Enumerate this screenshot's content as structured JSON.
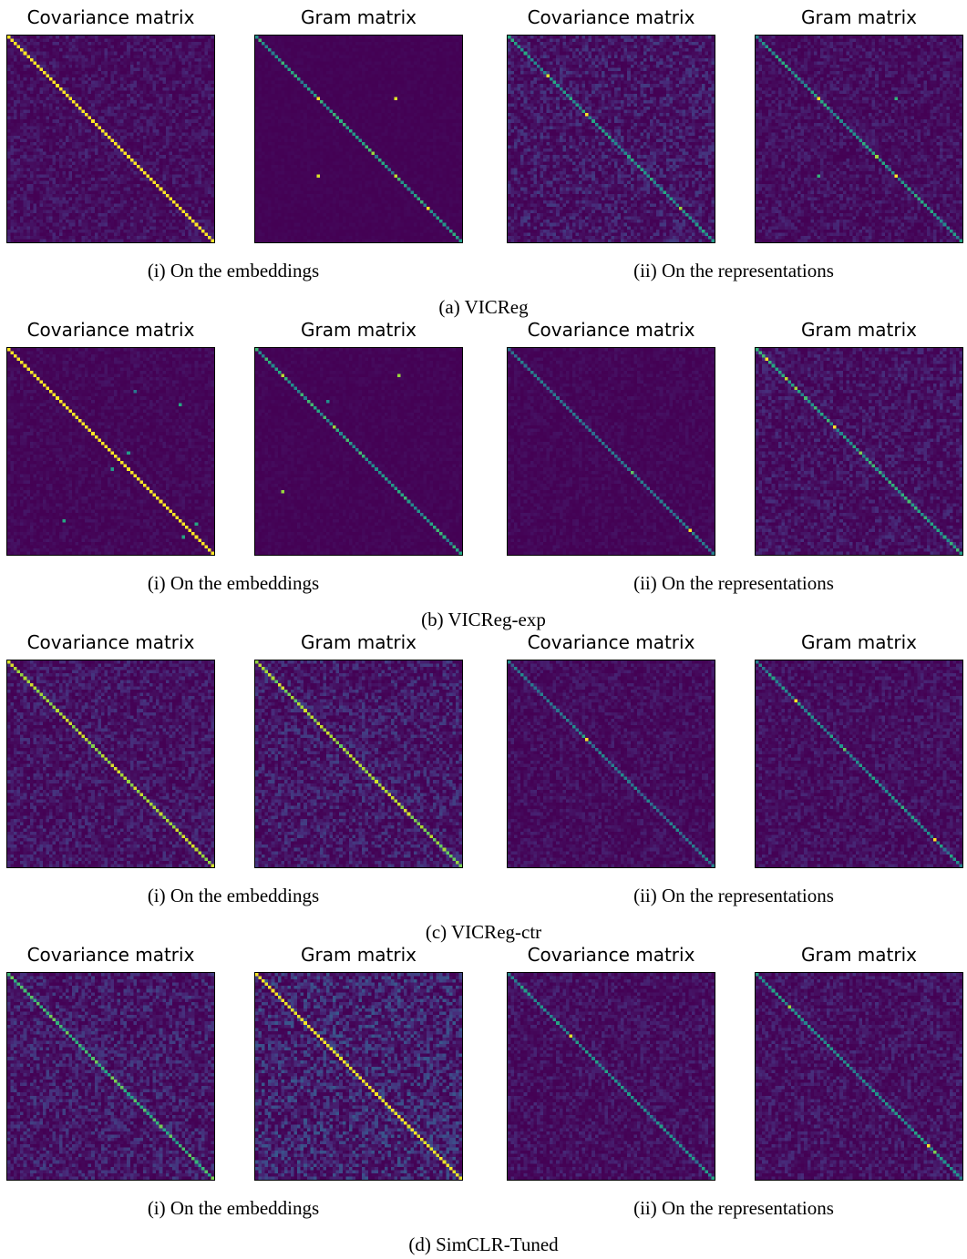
{
  "colors": {
    "low": "#440154",
    "mid": "#21918c",
    "high": "#fde725"
  },
  "subcaptions": [
    "(i) On the embeddings",
    "(ii) On the representations"
  ],
  "chart_data": [
    {
      "type": "heatmap",
      "group": "(a) VICReg",
      "title": "Covariance matrix",
      "n": 64,
      "diag": [
        1.0,
        1.0
      ],
      "noise": 0.12,
      "seed": 11,
      "spots": []
    },
    {
      "type": "heatmap",
      "group": "(a) VICReg",
      "title": "Gram matrix",
      "n": 64,
      "diag": [
        0.4,
        0.7
      ],
      "noise": 0.02,
      "seed": 12,
      "spots": [
        [
          19,
          19,
          1
        ],
        [
          19,
          43,
          0.95
        ],
        [
          43,
          19,
          0.95
        ],
        [
          36,
          36,
          0.85
        ],
        [
          43,
          43,
          0.9
        ],
        [
          53,
          53,
          1
        ],
        [
          60,
          60,
          0.6
        ]
      ]
    },
    {
      "type": "heatmap",
      "group": "(a) VICReg",
      "title": "Covariance matrix",
      "n": 64,
      "diag": [
        0.4,
        0.65
      ],
      "noise": 0.18,
      "seed": 13,
      "spots": [
        [
          12,
          12,
          0.95
        ],
        [
          24,
          24,
          1
        ],
        [
          53,
          53,
          0.85
        ]
      ]
    },
    {
      "type": "heatmap",
      "group": "(a) VICReg",
      "title": "Gram matrix",
      "n": 64,
      "diag": [
        0.4,
        0.65
      ],
      "noise": 0.12,
      "seed": 14,
      "spots": [
        [
          19,
          19,
          1
        ],
        [
          19,
          43,
          0.65
        ],
        [
          43,
          19,
          0.65
        ],
        [
          37,
          37,
          0.85
        ],
        [
          43,
          43,
          1
        ]
      ]
    },
    {
      "type": "heatmap",
      "group": "(b) VICReg-exp",
      "title": "Covariance matrix",
      "n": 64,
      "diag": [
        1.0,
        1.0
      ],
      "noise": 0.06,
      "seed": 21,
      "spots": [
        [
          17,
          53,
          0.6
        ],
        [
          53,
          17,
          0.6
        ],
        [
          32,
          37,
          0.55
        ],
        [
          37,
          32,
          0.55
        ],
        [
          13,
          39,
          0.4
        ],
        [
          58,
          54,
          0.6
        ],
        [
          54,
          58,
          0.6
        ]
      ]
    },
    {
      "type": "heatmap",
      "group": "(b) VICReg-exp",
      "title": "Gram matrix",
      "n": 64,
      "diag": [
        0.4,
        0.7
      ],
      "noise": 0.03,
      "seed": 22,
      "spots": [
        [
          8,
          8,
          0.9
        ],
        [
          8,
          44,
          0.85
        ],
        [
          44,
          8,
          0.85
        ],
        [
          24,
          24,
          0.85
        ],
        [
          32,
          32,
          0.7
        ],
        [
          45,
          45,
          0.6
        ],
        [
          16,
          22,
          0.5
        ]
      ]
    },
    {
      "type": "heatmap",
      "group": "(b) VICReg-exp",
      "title": "Covariance matrix",
      "n": 64,
      "diag": [
        0.35,
        0.45
      ],
      "noise": 0.05,
      "seed": 23,
      "spots": [
        [
          38,
          38,
          0.75
        ],
        [
          56,
          56,
          1
        ]
      ]
    },
    {
      "type": "heatmap",
      "group": "(b) VICReg-exp",
      "title": "Gram matrix",
      "n": 64,
      "diag": [
        0.45,
        0.7
      ],
      "noise": 0.14,
      "seed": 24,
      "spots": [
        [
          3,
          3,
          1
        ],
        [
          9,
          9,
          0.9
        ],
        [
          12,
          12,
          0.85
        ],
        [
          24,
          24,
          1
        ],
        [
          32,
          32,
          0.8
        ]
      ]
    },
    {
      "type": "heatmap",
      "group": "(c) VICReg-ctr",
      "title": "Covariance matrix",
      "n": 64,
      "diag": [
        0.8,
        0.95
      ],
      "noise": 0.16,
      "seed": 31,
      "spots": []
    },
    {
      "type": "heatmap",
      "group": "(c) VICReg-ctr",
      "title": "Gram matrix",
      "n": 64,
      "diag": [
        0.75,
        0.95
      ],
      "noise": 0.2,
      "seed": 32,
      "spots": []
    },
    {
      "type": "heatmap",
      "group": "(c) VICReg-ctr",
      "title": "Covariance matrix",
      "n": 64,
      "diag": [
        0.3,
        0.5
      ],
      "noise": 0.1,
      "seed": 33,
      "spots": [
        [
          24,
          24,
          1
        ],
        [
          23,
          23,
          0.6
        ]
      ]
    },
    {
      "type": "heatmap",
      "group": "(c) VICReg-ctr",
      "title": "Gram matrix",
      "n": 64,
      "diag": [
        0.35,
        0.6
      ],
      "noise": 0.12,
      "seed": 34,
      "spots": [
        [
          12,
          12,
          1
        ],
        [
          27,
          27,
          0.75
        ],
        [
          45,
          45,
          0.65
        ],
        [
          55,
          55,
          1
        ]
      ]
    },
    {
      "type": "heatmap",
      "group": "(d) SimCLR-Tuned",
      "title": "Covariance matrix",
      "n": 64,
      "diag": [
        0.55,
        0.8
      ],
      "noise": 0.2,
      "seed": 41,
      "spots": []
    },
    {
      "type": "heatmap",
      "group": "(d) SimCLR-Tuned",
      "title": "Gram matrix",
      "n": 64,
      "diag": [
        0.95,
        1.0
      ],
      "noise": 0.28,
      "seed": 42,
      "spots": []
    },
    {
      "type": "heatmap",
      "group": "(d) SimCLR-Tuned",
      "title": "Covariance matrix",
      "n": 64,
      "diag": [
        0.35,
        0.6
      ],
      "noise": 0.12,
      "seed": 43,
      "spots": [
        [
          19,
          19,
          0.95
        ]
      ]
    },
    {
      "type": "heatmap",
      "group": "(d) SimCLR-Tuned",
      "title": "Gram matrix",
      "n": 64,
      "diag": [
        0.4,
        0.6
      ],
      "noise": 0.14,
      "seed": 44,
      "spots": [
        [
          10,
          10,
          0.85
        ],
        [
          53,
          53,
          1
        ],
        [
          55,
          55,
          0.8
        ]
      ]
    }
  ],
  "captions": [
    "(a) VICReg",
    "(b) VICReg-exp",
    "(c) VICReg-ctr",
    "(d) SimCLR-Tuned"
  ]
}
